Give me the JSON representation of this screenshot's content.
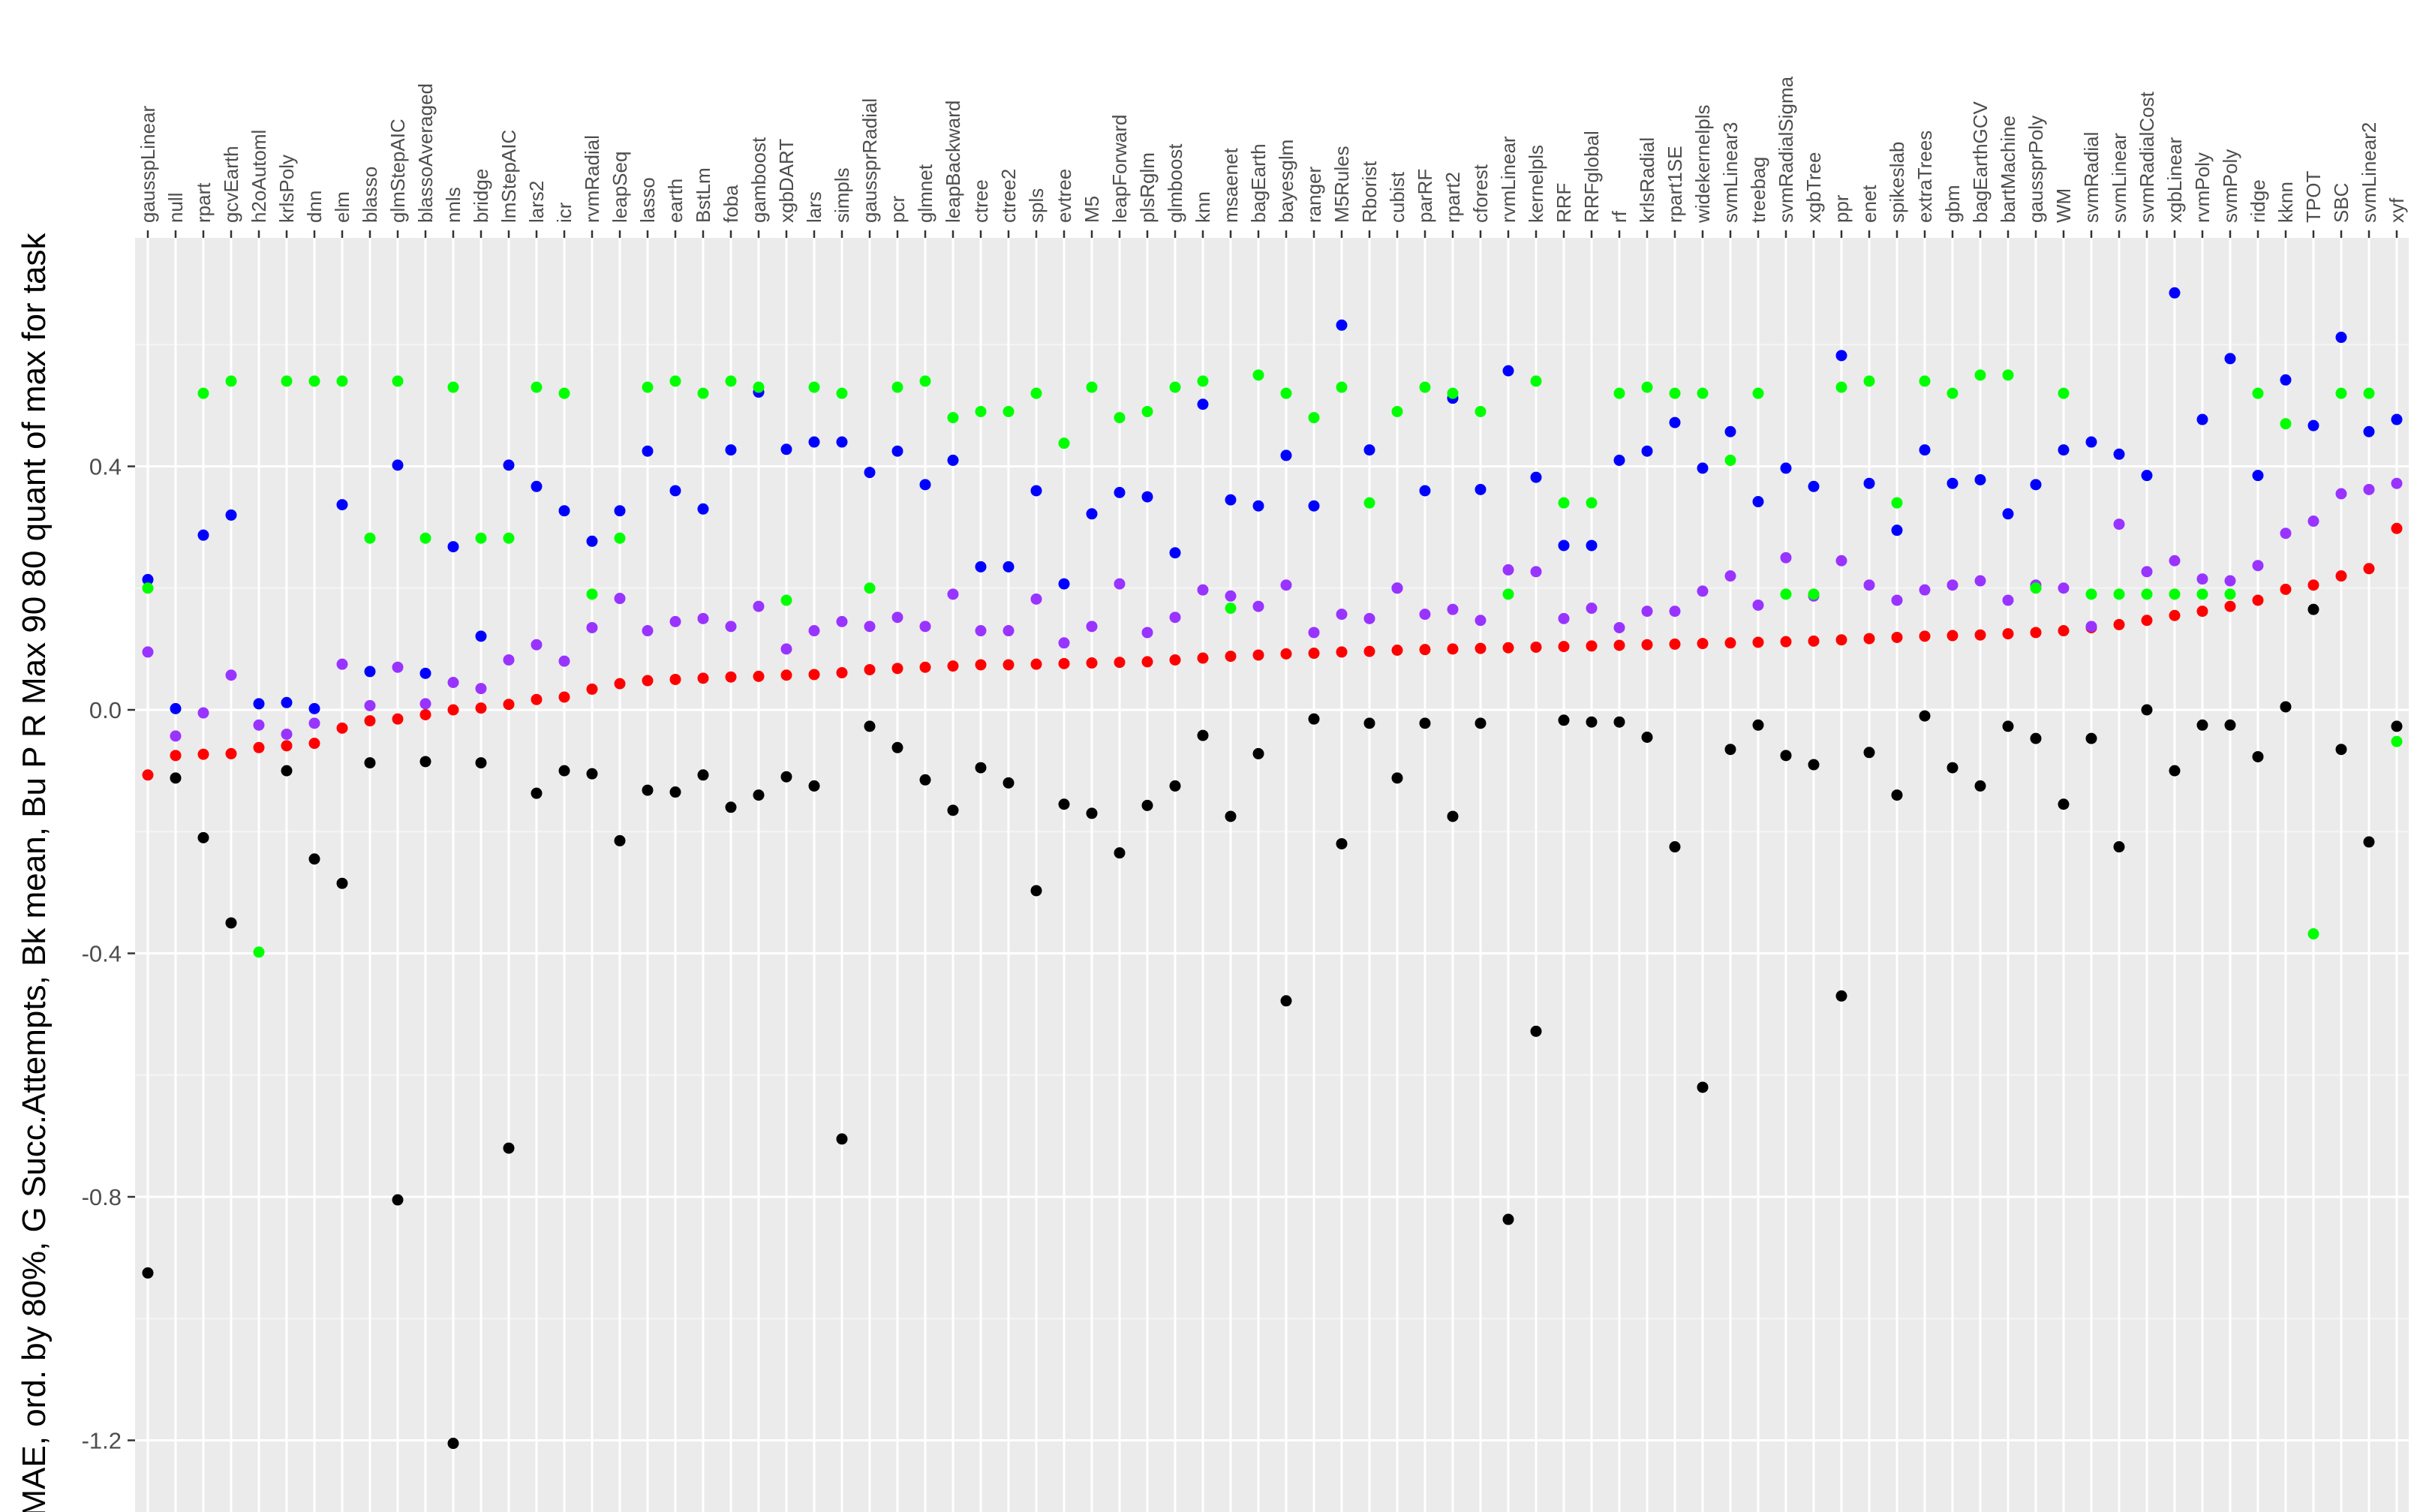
{
  "chart_data": {
    "type": "scatter",
    "ylabel": "MAE, ord. by 80%, G Succ.Attempts, Bk mean, Bu P R Max 90 80 quant of max for task",
    "xlabel": "",
    "ylim": [
      -1.3,
      0.78
    ],
    "yticks": [
      -1.2,
      -0.8,
      -0.4,
      0.0,
      0.4
    ],
    "ytick_labels": [
      "-1.2",
      "-0.8",
      "-0.4",
      "0.0",
      "0.4"
    ],
    "x_axis_position": "top",
    "grid": true,
    "categories": [
      "gausspLinear",
      "null",
      "rpart",
      "gcvEarth",
      "h2oAutoml",
      "krlsPoly",
      "dnn",
      "elm",
      "blasso",
      "glmStepAIC",
      "blassoAveraged",
      "nnls",
      "bridge",
      "lmStepAIC",
      "lars2",
      "icr",
      "rvmRadial",
      "leapSeq",
      "lasso",
      "earth",
      "BstLm",
      "foba",
      "gamboost",
      "xgbDART",
      "lars",
      "simpls",
      "gaussprRadial",
      "pcr",
      "glmnet",
      "leapBackward",
      "ctree",
      "ctree2",
      "spls",
      "evtree",
      "M5",
      "leapForward",
      "plsRglm",
      "glmboost",
      "knn",
      "msaenet",
      "bagEarth",
      "bayesglm",
      "ranger",
      "M5Rules",
      "Rborist",
      "cubist",
      "parRF",
      "rpart2",
      "cforest",
      "rvmLinear",
      "kernelpls",
      "RRF",
      "RRFglobal",
      "rf",
      "krlsRadial",
      "rpart1SE",
      "widekernelpls",
      "svmLinear3",
      "treebag",
      "svmRadialSigma",
      "xgbTree",
      "ppr",
      "enet",
      "spikeslab",
      "extraTrees",
      "gbm",
      "bagEarthGCV",
      "bartMachine",
      "gaussprPoly",
      "WM",
      "svmRadial",
      "svmLinear",
      "svmRadialCost",
      "xgbLinear",
      "rvmPoly",
      "svmPoly",
      "ridge",
      "kknn",
      "TPOT",
      "SBC",
      "svmLinear2",
      "xyf"
    ],
    "series": [
      {
        "color": "#ff0000",
        "values": [
          -0.107,
          -0.075,
          -0.073,
          -0.072,
          -0.062,
          -0.059,
          -0.055,
          -0.03,
          -0.018,
          -0.015,
          -0.008,
          0.0,
          0.003,
          0.009,
          0.017,
          0.021,
          0.034,
          0.043,
          0.048,
          0.05,
          0.052,
          0.054,
          0.055,
          0.057,
          0.058,
          0.061,
          0.066,
          0.068,
          0.07,
          0.072,
          0.074,
          0.074,
          0.075,
          0.076,
          0.077,
          0.078,
          0.079,
          0.082,
          0.085,
          0.088,
          0.09,
          0.092,
          0.093,
          0.095,
          0.096,
          0.098,
          0.099,
          0.1,
          0.101,
          0.102,
          0.103,
          0.104,
          0.105,
          0.106,
          0.107,
          0.108,
          0.109,
          0.11,
          0.111,
          0.112,
          0.113,
          0.115,
          0.117,
          0.119,
          0.121,
          0.122,
          0.123,
          0.125,
          0.127,
          0.13,
          0.135,
          0.14,
          0.147,
          0.155,
          0.162,
          0.17,
          0.18,
          0.198,
          0.205,
          0.22,
          0.232,
          0.298
        ]
      },
      {
        "color": "#0000ff",
        "values": [
          0.214,
          0.002,
          0.287,
          0.32,
          0.01,
          0.012,
          0.002,
          0.337,
          0.063,
          0.402,
          0.06,
          0.268,
          0.121,
          0.402,
          0.367,
          0.327,
          0.277,
          0.327,
          0.425,
          0.36,
          0.33,
          0.427,
          0.522,
          0.428,
          0.44,
          0.44,
          0.39,
          0.425,
          0.37,
          0.41,
          0.235,
          0.235,
          0.36,
          0.207,
          0.322,
          0.357,
          0.35,
          0.258,
          0.502,
          0.345,
          0.335,
          0.418,
          0.335,
          0.632,
          0.427,
          0.2,
          0.36,
          0.512,
          0.362,
          0.557,
          0.382,
          0.27,
          0.27,
          0.41,
          0.425,
          0.472,
          0.397,
          0.457,
          0.342,
          0.397,
          0.367,
          0.582,
          0.372,
          0.295,
          0.427,
          0.372,
          0.378,
          0.322,
          0.37,
          0.427,
          0.44,
          0.42,
          0.385,
          0.685,
          0.477,
          0.577,
          0.385,
          0.542,
          0.467,
          0.612,
          0.457,
          0.477
        ]
      },
      {
        "color": "#9933ff",
        "values": [
          0.095,
          -0.043,
          -0.005,
          0.057,
          -0.025,
          -0.04,
          -0.022,
          0.075,
          0.007,
          0.07,
          0.01,
          0.045,
          0.035,
          0.082,
          0.107,
          0.08,
          0.135,
          0.183,
          0.13,
          0.145,
          0.15,
          0.137,
          0.17,
          0.1,
          0.13,
          0.145,
          0.137,
          0.152,
          0.137,
          0.19,
          0.13,
          0.13,
          0.182,
          0.11,
          0.137,
          0.207,
          0.127,
          0.152,
          0.197,
          0.187,
          0.17,
          0.205,
          0.127,
          0.157,
          0.15,
          0.2,
          0.157,
          0.165,
          0.147,
          0.23,
          0.227,
          0.15,
          0.167,
          0.135,
          0.162,
          0.162,
          0.195,
          0.22,
          0.172,
          0.25,
          0.187,
          0.245,
          0.205,
          0.18,
          0.197,
          0.205,
          0.212,
          0.18,
          0.205,
          0.2,
          0.137,
          0.305,
          0.227,
          0.245,
          0.215,
          0.212,
          0.237,
          0.29,
          0.31,
          0.355,
          0.362,
          0.372
        ]
      },
      {
        "color": "#00ff00",
        "values": [
          0.2,
          null,
          0.52,
          0.54,
          -0.398,
          0.54,
          0.54,
          0.54,
          0.282,
          0.54,
          0.282,
          0.53,
          0.282,
          0.282,
          0.53,
          0.52,
          0.19,
          0.282,
          0.53,
          0.54,
          0.52,
          0.54,
          0.53,
          0.18,
          0.53,
          0.52,
          0.2,
          0.53,
          0.54,
          0.48,
          0.49,
          0.49,
          0.52,
          0.438,
          0.53,
          0.48,
          0.49,
          0.53,
          0.54,
          0.167,
          0.55,
          0.52,
          0.48,
          0.53,
          0.34,
          0.49,
          0.53,
          0.52,
          0.49,
          0.19,
          0.54,
          0.34,
          0.34,
          0.52,
          0.53,
          0.52,
          0.52,
          0.41,
          0.52,
          0.19,
          0.19,
          0.53,
          0.54,
          0.34,
          0.54,
          0.52,
          0.55,
          0.55,
          0.2,
          0.52,
          0.19,
          0.19,
          0.19,
          0.19,
          0.19,
          0.19,
          0.52,
          0.47,
          -0.368,
          0.52,
          0.52,
          -0.052
        ]
      },
      {
        "color": "#000000",
        "values": [
          -0.925,
          -0.112,
          -0.21,
          -0.35,
          null,
          -0.1,
          -0.245,
          -0.285,
          -0.087,
          -0.805,
          -0.085,
          -1.205,
          -0.087,
          -0.72,
          -0.137,
          -0.1,
          -0.105,
          -0.215,
          -0.132,
          -0.135,
          -0.107,
          -0.16,
          -0.14,
          -0.11,
          -0.125,
          -0.705,
          -0.027,
          -0.062,
          -0.115,
          -0.165,
          -0.095,
          -0.12,
          -0.297,
          -0.155,
          -0.17,
          -0.235,
          -0.157,
          -0.125,
          -0.042,
          -0.175,
          -0.072,
          -0.478,
          -0.015,
          -0.22,
          -0.022,
          -0.112,
          -0.022,
          -0.175,
          -0.022,
          -0.837,
          -0.528,
          -0.017,
          -0.02,
          -0.02,
          -0.045,
          -0.225,
          -0.62,
          -0.065,
          -0.025,
          -0.075,
          -0.09,
          -0.47,
          -0.07,
          -0.14,
          -0.01,
          -0.095,
          -0.125,
          -0.027,
          -0.047,
          -0.155,
          -0.047,
          -0.225,
          0.0,
          -0.1,
          -0.025,
          -0.025,
          -0.077,
          0.005,
          0.165,
          -0.065,
          -0.217,
          -0.027
        ]
      }
    ]
  }
}
